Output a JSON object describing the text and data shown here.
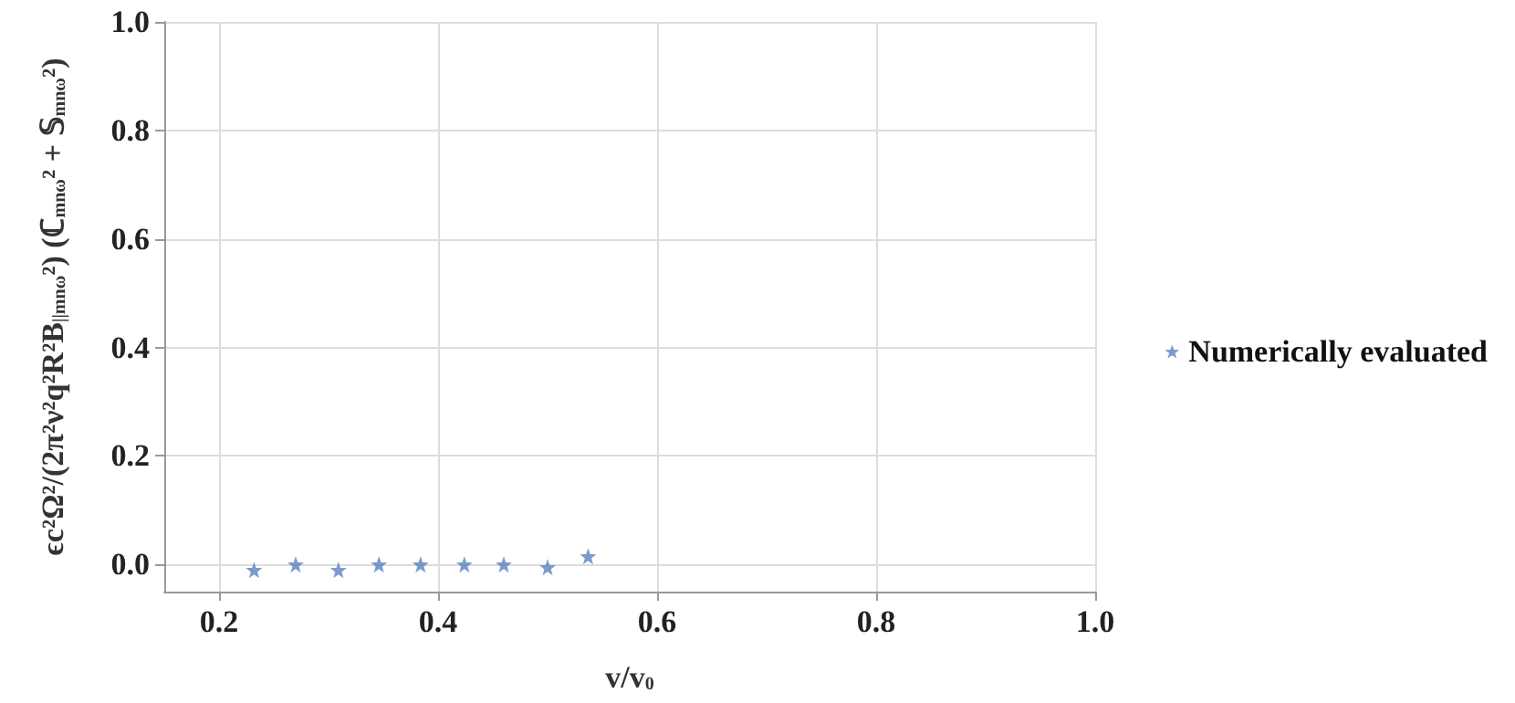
{
  "chart_data": {
    "type": "scatter",
    "xlabel": "v/v$_{0}$",
    "ylabel": "ϵc²Ω²/(2π²ν²q²R²B$_{||mnω}$²) (ℂ$_{mnω}$² + 𝕊$_{mnω}$²)",
    "x": [
      0.232,
      0.27,
      0.309,
      0.346,
      0.384,
      0.424,
      0.46,
      0.5,
      0.537
    ],
    "series": [
      {
        "name": "Numerically evaluated",
        "color": "#5b81c0",
        "values": [
          -0.01,
          0.0,
          -0.01,
          0.0,
          0.0,
          0.0,
          0.0,
          -0.005,
          0.015
        ]
      }
    ],
    "xlim": [
      0.15,
      1.0
    ],
    "xticks": [
      0.2,
      0.4,
      0.6,
      0.8,
      {
        "value": 1,
        "label": "1.0"
      }
    ],
    "ylim": [
      -0.05,
      1.0
    ],
    "yticks": [
      {
        "value": 0,
        "label": "0.0"
      },
      0.2,
      0.4,
      0.6,
      0.8,
      {
        "value": 1,
        "label": "1.0"
      }
    ],
    "grid": true,
    "legend": "right",
    "marker": "star"
  }
}
